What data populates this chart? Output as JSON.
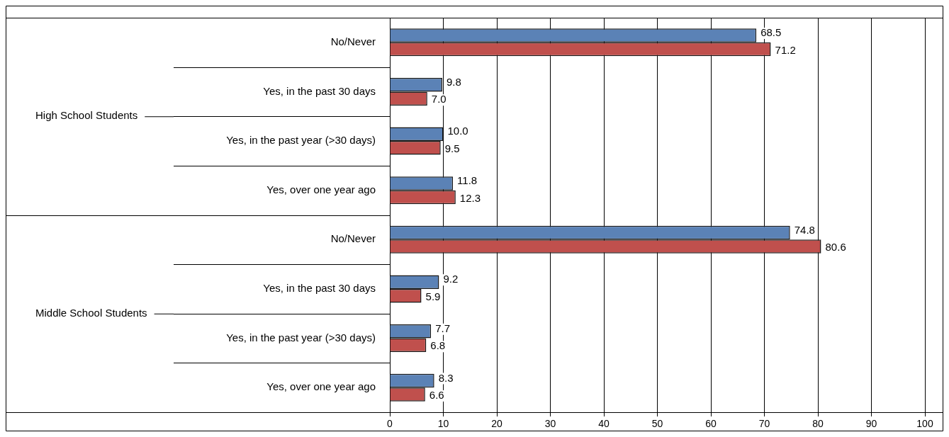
{
  "chart_data": {
    "type": "bar",
    "orientation": "horizontal",
    "categories": [
      "No/Never",
      "Yes, in the past 30 days",
      "Yes, in the past year (>30 days)",
      "Yes, over one year ago",
      "No/Never",
      "Yes, in the past 30 days",
      "Yes, in the past year (>30 days)",
      "Yes, over one year ago"
    ],
    "series": [
      {
        "color": "#5b82b6",
        "values": [
          68.5,
          9.8,
          10.0,
          11.8,
          74.8,
          9.2,
          7.7,
          8.3
        ],
        "value_labels": [
          "68.5",
          "9.8",
          "10.0",
          "11.8",
          "74.8",
          "9.2",
          "7.7",
          "8.3"
        ]
      },
      {
        "color": "#c0504d",
        "values": [
          71.2,
          7.0,
          9.5,
          12.3,
          80.6,
          5.9,
          6.8,
          6.6
        ],
        "value_labels": [
          "71.2",
          "7.0",
          "9.5",
          "12.3",
          "80.6",
          "5.9",
          "6.8",
          "6.6"
        ]
      }
    ],
    "annotations": [
      "High School Students",
      "Middle School Students"
    ],
    "xlim": [
      0,
      100
    ],
    "xticks": [
      0,
      10,
      20,
      30,
      40,
      50,
      60,
      70,
      80,
      90,
      100
    ],
    "grid": "x",
    "legend": false
  }
}
